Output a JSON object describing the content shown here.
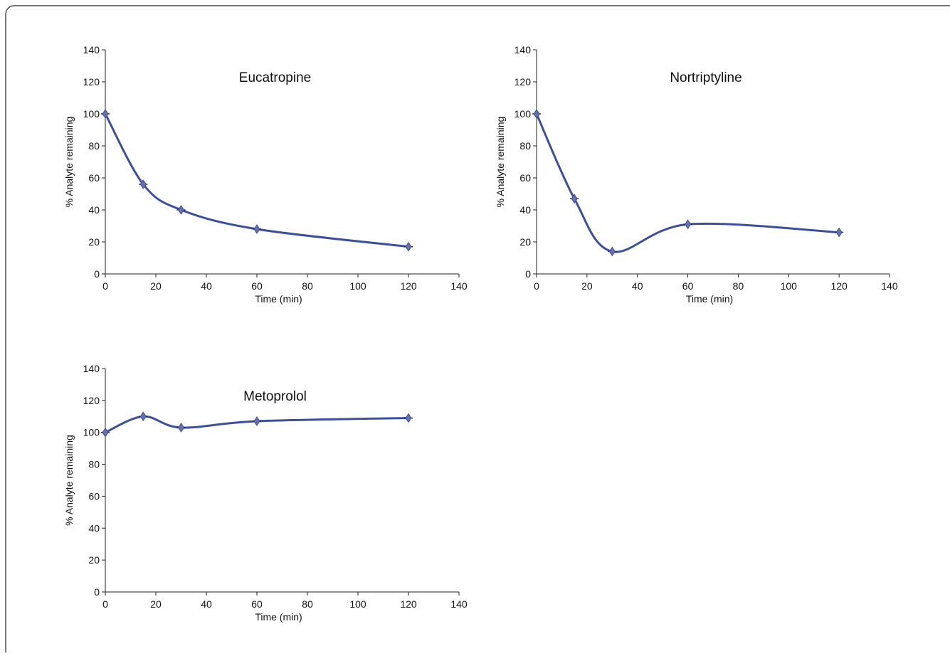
{
  "chart_data": [
    {
      "type": "line",
      "title": "Eucatropine",
      "xlabel": "Time (min)",
      "ylabel": "% Analyte remaining",
      "x": [
        0,
        15,
        30,
        60,
        120
      ],
      "values": [
        100,
        56,
        40,
        28,
        17
      ],
      "color": "#3a4fa0",
      "xlim": [
        0,
        140
      ],
      "xticks": [
        0,
        20,
        40,
        60,
        80,
        100,
        120,
        140
      ],
      "ylim": [
        0,
        140
      ],
      "yticks": [
        0,
        20,
        40,
        60,
        80,
        100,
        120,
        140
      ]
    },
    {
      "type": "line",
      "title": "Nortriptyline",
      "xlabel": "Time (min)",
      "ylabel": "% Analyte remaining",
      "x": [
        0,
        15,
        30,
        60,
        120
      ],
      "values": [
        100,
        47,
        14,
        31,
        26
      ],
      "color": "#3a4fa0",
      "xlim": [
        0,
        140
      ],
      "xticks": [
        0,
        20,
        40,
        60,
        80,
        100,
        120,
        140
      ],
      "ylim": [
        0,
        140
      ],
      "yticks": [
        0,
        20,
        40,
        60,
        80,
        100,
        120,
        140
      ]
    },
    {
      "type": "line",
      "title": "Metoprolol",
      "xlabel": "Time (min)",
      "ylabel": "% Analyte remaining",
      "x": [
        0,
        15,
        30,
        60,
        120
      ],
      "values": [
        100,
        110,
        103,
        107,
        109
      ],
      "color": "#3a4fa0",
      "xlim": [
        0,
        140
      ],
      "xticks": [
        0,
        20,
        40,
        60,
        80,
        100,
        120,
        140
      ],
      "ylim": [
        0,
        140
      ],
      "yticks": [
        0,
        20,
        40,
        60,
        80,
        100,
        120,
        140
      ]
    }
  ]
}
